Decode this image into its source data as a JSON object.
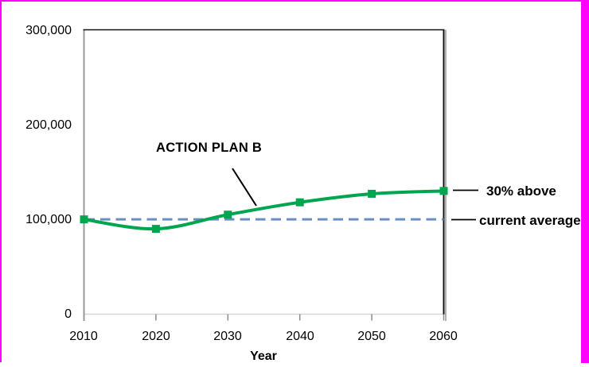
{
  "frame": {
    "border_color": "#FF00FF"
  },
  "chart_data": {
    "type": "line",
    "title": "",
    "xlabel": "Year",
    "ylabel": "",
    "x": [
      2010,
      2020,
      2030,
      2040,
      2050,
      2060
    ],
    "xlim": [
      2010,
      2060
    ],
    "ylim": [
      0,
      300000
    ],
    "yticks": [
      0,
      100000,
      200000,
      300000
    ],
    "ytick_labels": [
      "0",
      "100,000",
      "200,000",
      "300,000"
    ],
    "xtick_labels": [
      "2010",
      "2020",
      "2030",
      "2040",
      "2050",
      "2060"
    ],
    "grid": false,
    "legend": "none",
    "series": [
      {
        "name": "ACTION PLAN B",
        "color": "#00A64F",
        "marker": "square",
        "smooth": true,
        "values": [
          100000,
          90000,
          105000,
          118000,
          127000,
          130000
        ]
      }
    ],
    "reference_line": {
      "value": 100000,
      "label": "current average",
      "style": "dashed",
      "color": "#6A8EC2"
    }
  },
  "annotations": {
    "series_label": "ACTION PLAN B",
    "end_label": "30% above",
    "reference_label": "current average"
  }
}
